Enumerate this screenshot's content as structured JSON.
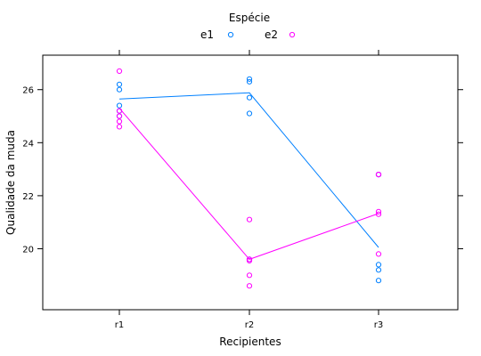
{
  "chart_data": {
    "type": "scatter",
    "title": "",
    "xlabel": "Recipientes",
    "ylabel": "Qualidade da muda",
    "categories": [
      "r1",
      "r2",
      "r3"
    ],
    "ylim": [
      17.7,
      27.3
    ],
    "yticks": [
      20,
      22,
      24,
      26
    ],
    "grid": false,
    "legend": {
      "title": "Espécie",
      "placement": "top-center"
    },
    "series": [
      {
        "name": "e1",
        "color": "#0080ff",
        "points": [
          {
            "x": "r1",
            "y": 26.2
          },
          {
            "x": "r1",
            "y": 26.0
          },
          {
            "x": "r1",
            "y": 25.4
          },
          {
            "x": "r1",
            "y": 25.2
          },
          {
            "x": "r1",
            "y": 25.0
          },
          {
            "x": "r2",
            "y": 26.4
          },
          {
            "x": "r2",
            "y": 26.3
          },
          {
            "x": "r2",
            "y": 25.7
          },
          {
            "x": "r2",
            "y": 25.1
          },
          {
            "x": "r2",
            "y": 19.6
          },
          {
            "x": "r3",
            "y": 19.4
          },
          {
            "x": "r3",
            "y": 19.2
          },
          {
            "x": "r3",
            "y": 18.8
          },
          {
            "x": "r3",
            "y": 22.8
          },
          {
            "x": "r3",
            "y": 22.8
          }
        ],
        "line": [
          {
            "x": "r1",
            "y": 25.65
          },
          {
            "x": "r2",
            "y": 25.88
          },
          {
            "x": "r3",
            "y": 20.05
          }
        ]
      },
      {
        "name": "e2",
        "color": "#ff00ff",
        "points": [
          {
            "x": "r1",
            "y": 26.7
          },
          {
            "x": "r1",
            "y": 25.2
          },
          {
            "x": "r1",
            "y": 25.0
          },
          {
            "x": "r1",
            "y": 24.8
          },
          {
            "x": "r1",
            "y": 24.6
          },
          {
            "x": "r2",
            "y": 21.1
          },
          {
            "x": "r2",
            "y": 19.6
          },
          {
            "x": "r2",
            "y": 19.0
          },
          {
            "x": "r2",
            "y": 18.6
          },
          {
            "x": "r2",
            "y": 19.55
          },
          {
            "x": "r3",
            "y": 22.8
          },
          {
            "x": "r3",
            "y": 21.4
          },
          {
            "x": "r3",
            "y": 21.3
          },
          {
            "x": "r3",
            "y": 19.8
          },
          {
            "x": "r3",
            "y": 22.8
          }
        ],
        "line": [
          {
            "x": "r1",
            "y": 25.3
          },
          {
            "x": "r2",
            "y": 19.6
          },
          {
            "x": "r3",
            "y": 21.33
          }
        ]
      }
    ]
  }
}
